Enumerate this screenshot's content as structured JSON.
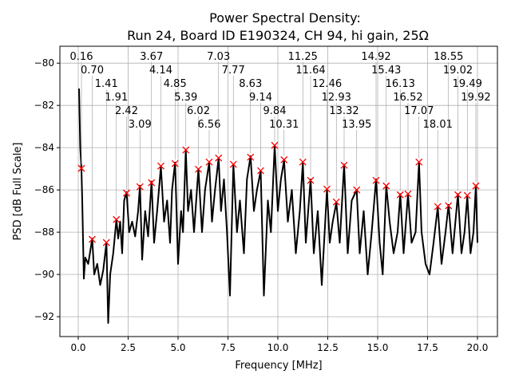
{
  "chart_data": {
    "type": "line",
    "title": "Power Spectral Density:",
    "subtitle": "Run 24, Board ID E190324, CH 94, hi gain, 25Ω",
    "xlabel": "Frequency [MHz]",
    "ylabel": "PSD [dB Full Scale]",
    "xlim": [
      -0.92,
      21.0
    ],
    "ylim": [
      -92.94,
      -79.2
    ],
    "xticks": [
      0.0,
      2.5,
      5.0,
      7.5,
      10.0,
      12.5,
      15.0,
      17.5,
      20.0
    ],
    "xtick_labels": [
      "0.0",
      "2.5",
      "5.0",
      "7.5",
      "10.0",
      "12.5",
      "15.0",
      "17.5",
      "20.0"
    ],
    "yticks": [
      -80,
      -82,
      -84,
      -86,
      -88,
      -90,
      -92
    ],
    "ytick_labels": [
      "−80",
      "−82",
      "−84",
      "−86",
      "−88",
      "−90",
      "−92"
    ],
    "grid": true,
    "line_color": "#000000",
    "marker_color": "#ff0000",
    "line": [
      [
        0.04,
        -81.2
      ],
      [
        0.1,
        -84
      ],
      [
        0.16,
        -85
      ],
      [
        0.2,
        -86.5
      ],
      [
        0.28,
        -90.2
      ],
      [
        0.35,
        -89.2
      ],
      [
        0.5,
        -89.5
      ],
      [
        0.7,
        -88.3
      ],
      [
        0.8,
        -90
      ],
      [
        0.95,
        -89.5
      ],
      [
        1.1,
        -90.5
      ],
      [
        1.25,
        -89.8
      ],
      [
        1.41,
        -88.5
      ],
      [
        1.5,
        -92.3
      ],
      [
        1.6,
        -90
      ],
      [
        1.75,
        -89
      ],
      [
        1.91,
        -87.4
      ],
      [
        2.0,
        -88.3
      ],
      [
        2.1,
        -87.5
      ],
      [
        2.2,
        -89
      ],
      [
        2.3,
        -86.5
      ],
      [
        2.42,
        -86.1
      ],
      [
        2.55,
        -88
      ],
      [
        2.7,
        -87.5
      ],
      [
        2.85,
        -88.2
      ],
      [
        3.0,
        -87
      ],
      [
        3.09,
        -85.8
      ],
      [
        3.2,
        -89.3
      ],
      [
        3.35,
        -87
      ],
      [
        3.5,
        -88.2
      ],
      [
        3.67,
        -85.6
      ],
      [
        3.8,
        -88.5
      ],
      [
        3.95,
        -87
      ],
      [
        4.14,
        -84.9
      ],
      [
        4.3,
        -87.5
      ],
      [
        4.45,
        -86.5
      ],
      [
        4.6,
        -88.5
      ],
      [
        4.7,
        -86
      ],
      [
        4.85,
        -84.7
      ],
      [
        5.0,
        -89.5
      ],
      [
        5.15,
        -87
      ],
      [
        5.25,
        -88
      ],
      [
        5.39,
        -84.1
      ],
      [
        5.5,
        -87
      ],
      [
        5.65,
        -86
      ],
      [
        5.8,
        -88
      ],
      [
        6.02,
        -85
      ],
      [
        6.2,
        -88
      ],
      [
        6.35,
        -86
      ],
      [
        6.56,
        -84.7
      ],
      [
        6.7,
        -87.5
      ],
      [
        6.85,
        -86
      ],
      [
        7.03,
        -84.5
      ],
      [
        7.15,
        -87
      ],
      [
        7.3,
        -85.5
      ],
      [
        7.45,
        -88
      ],
      [
        7.6,
        -91
      ],
      [
        7.77,
        -84.8
      ],
      [
        7.95,
        -88
      ],
      [
        8.1,
        -86.5
      ],
      [
        8.3,
        -89
      ],
      [
        8.45,
        -85.5
      ],
      [
        8.63,
        -84.4
      ],
      [
        8.8,
        -87
      ],
      [
        8.95,
        -86
      ],
      [
        9.14,
        -85.1
      ],
      [
        9.3,
        -91
      ],
      [
        9.5,
        -86.5
      ],
      [
        9.65,
        -88
      ],
      [
        9.84,
        -83.9
      ],
      [
        10.0,
        -87
      ],
      [
        10.15,
        -85.5
      ],
      [
        10.31,
        -84.6
      ],
      [
        10.5,
        -87.5
      ],
      [
        10.7,
        -86
      ],
      [
        10.9,
        -89
      ],
      [
        11.1,
        -87
      ],
      [
        11.25,
        -84.7
      ],
      [
        11.4,
        -88.5
      ],
      [
        11.64,
        -85.5
      ],
      [
        11.8,
        -89
      ],
      [
        12.0,
        -87
      ],
      [
        12.2,
        -90.5
      ],
      [
        12.46,
        -86
      ],
      [
        12.6,
        -88.5
      ],
      [
        12.75,
        -87.5
      ],
      [
        12.93,
        -86.6
      ],
      [
        13.1,
        -88.5
      ],
      [
        13.32,
        -84.8
      ],
      [
        13.5,
        -89
      ],
      [
        13.7,
        -86.5
      ],
      [
        13.95,
        -86
      ],
      [
        14.1,
        -89
      ],
      [
        14.3,
        -87
      ],
      [
        14.5,
        -90
      ],
      [
        14.7,
        -88
      ],
      [
        14.92,
        -85.5
      ],
      [
        15.1,
        -88.5
      ],
      [
        15.25,
        -90
      ],
      [
        15.43,
        -85.8
      ],
      [
        15.6,
        -87.5
      ],
      [
        15.8,
        -89
      ],
      [
        16.0,
        -88
      ],
      [
        16.13,
        -86.2
      ],
      [
        16.3,
        -89
      ],
      [
        16.52,
        -86.2
      ],
      [
        16.7,
        -88.5
      ],
      [
        16.9,
        -88
      ],
      [
        17.07,
        -84.7
      ],
      [
        17.2,
        -88
      ],
      [
        17.4,
        -89.5
      ],
      [
        17.6,
        -90
      ],
      [
        17.8,
        -88.5
      ],
      [
        18.01,
        -86.8
      ],
      [
        18.2,
        -89.5
      ],
      [
        18.4,
        -88
      ],
      [
        18.55,
        -86.7
      ],
      [
        18.75,
        -89
      ],
      [
        19.02,
        -86.2
      ],
      [
        19.2,
        -89
      ],
      [
        19.35,
        -88
      ],
      [
        19.49,
        -86.3
      ],
      [
        19.65,
        -89
      ],
      [
        19.8,
        -88
      ],
      [
        19.92,
        -85.8
      ],
      [
        20.0,
        -88.5
      ]
    ],
    "peaks": [
      {
        "x": 0.16,
        "y": -84.98,
        "label": "0.16"
      },
      {
        "x": 0.7,
        "y": -88.34,
        "label": "0.70"
      },
      {
        "x": 1.41,
        "y": -88.49,
        "label": "1.41"
      },
      {
        "x": 1.91,
        "y": -87.4,
        "label": "1.91"
      },
      {
        "x": 2.42,
        "y": -86.15,
        "label": "2.42"
      },
      {
        "x": 3.09,
        "y": -85.85,
        "label": "3.09"
      },
      {
        "x": 3.67,
        "y": -85.66,
        "label": "3.67"
      },
      {
        "x": 4.14,
        "y": -84.87,
        "label": "4.14"
      },
      {
        "x": 4.85,
        "y": -84.75,
        "label": "4.85"
      },
      {
        "x": 5.39,
        "y": -84.11,
        "label": "5.39"
      },
      {
        "x": 6.02,
        "y": -85.02,
        "label": "6.02"
      },
      {
        "x": 6.56,
        "y": -84.68,
        "label": "6.56"
      },
      {
        "x": 7.03,
        "y": -84.49,
        "label": "7.03"
      },
      {
        "x": 7.77,
        "y": -84.79,
        "label": "7.77"
      },
      {
        "x": 8.63,
        "y": -84.45,
        "label": "8.63"
      },
      {
        "x": 9.14,
        "y": -85.09,
        "label": "9.14"
      },
      {
        "x": 9.84,
        "y": -83.89,
        "label": "9.84"
      },
      {
        "x": 10.31,
        "y": -84.57,
        "label": "10.31"
      },
      {
        "x": 11.25,
        "y": -84.68,
        "label": "11.25"
      },
      {
        "x": 11.64,
        "y": -85.55,
        "label": "11.64"
      },
      {
        "x": 12.46,
        "y": -85.96,
        "label": "12.46"
      },
      {
        "x": 12.93,
        "y": -86.57,
        "label": "12.93"
      },
      {
        "x": 13.32,
        "y": -84.83,
        "label": "13.32"
      },
      {
        "x": 13.95,
        "y": -86.0,
        "label": "13.95"
      },
      {
        "x": 14.92,
        "y": -85.55,
        "label": "14.92"
      },
      {
        "x": 15.43,
        "y": -85.81,
        "label": "15.43"
      },
      {
        "x": 16.13,
        "y": -86.23,
        "label": "16.13"
      },
      {
        "x": 16.52,
        "y": -86.19,
        "label": "16.52"
      },
      {
        "x": 17.07,
        "y": -84.68,
        "label": "17.07"
      },
      {
        "x": 18.01,
        "y": -86.79,
        "label": "18.01"
      },
      {
        "x": 18.55,
        "y": -86.75,
        "label": "18.55"
      },
      {
        "x": 19.02,
        "y": -86.23,
        "label": "19.02"
      },
      {
        "x": 19.49,
        "y": -86.26,
        "label": "19.49"
      },
      {
        "x": 19.92,
        "y": -85.81,
        "label": "19.92"
      }
    ]
  }
}
